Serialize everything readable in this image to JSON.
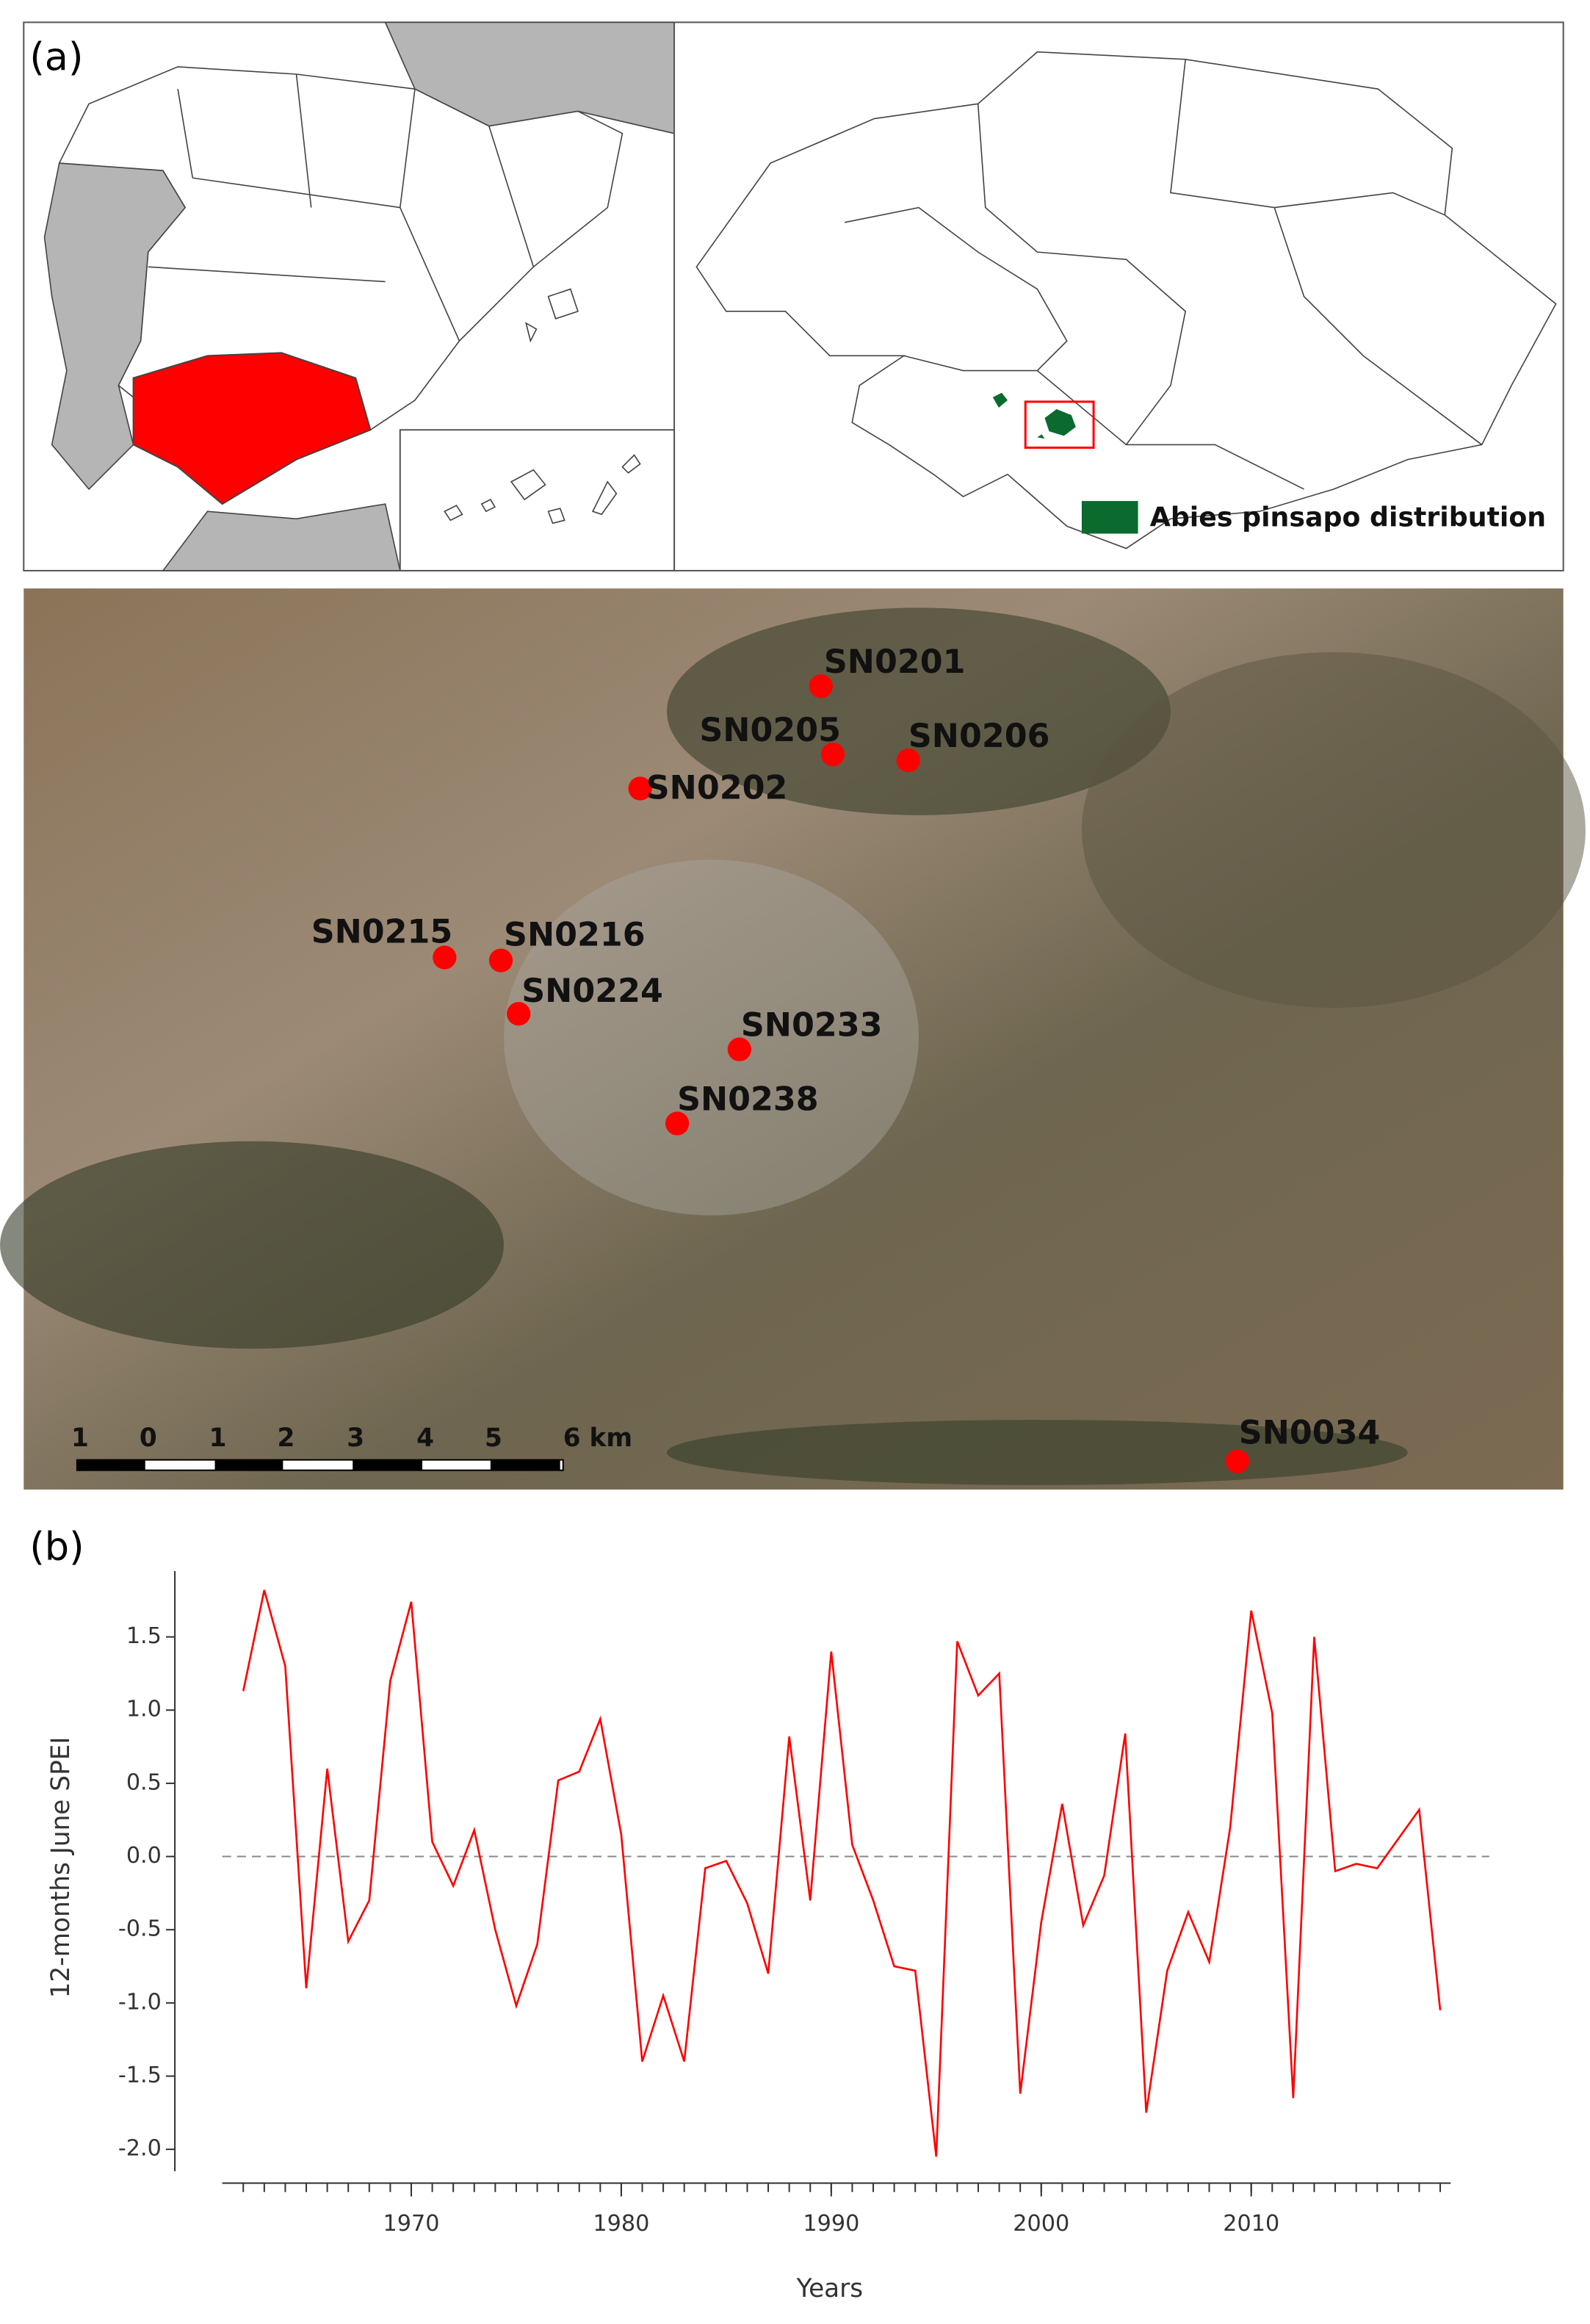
{
  "panel_labels": [
    "(a)",
    "(b)"
  ],
  "legend": {
    "label": "Abies pinsapo distribution",
    "color": "#0b6b2e"
  },
  "sites": {
    "names": [
      "SN0201",
      "SN0205",
      "SN0206",
      "SN0202",
      "SN0215",
      "SN0216",
      "SN0224",
      "SN0233",
      "SN0238",
      "SN0034"
    ],
    "color": "#ff0000"
  },
  "scale_bar": [
    "1",
    "0",
    "1",
    "2",
    "3",
    "4",
    "5",
    "6 km"
  ],
  "chart_data": {
    "type": "line",
    "xlabel": "Years",
    "ylabel": "12-months June SPEI",
    "x": [
      1962,
      1963,
      1964,
      1965,
      1966,
      1967,
      1968,
      1969,
      1970,
      1971,
      1972,
      1973,
      1974,
      1975,
      1976,
      1977,
      1978,
      1979,
      1980,
      1981,
      1982,
      1983,
      1984,
      1985,
      1986,
      1987,
      1988,
      1989,
      1990,
      1991,
      1992,
      1993,
      1994,
      1995,
      1996,
      1997,
      1998,
      1999,
      2000,
      2001,
      2002,
      2003,
      2004,
      2005,
      2006,
      2007,
      2008,
      2009,
      2010,
      2011,
      2012,
      2013,
      2014,
      2015,
      2016,
      2017,
      2018,
      2019
    ],
    "series": [
      {
        "name": "SPEI",
        "color": "#ff0000",
        "values": [
          1.13,
          1.82,
          1.3,
          -0.9,
          0.6,
          -0.58,
          -0.3,
          1.2,
          1.74,
          0.1,
          -0.2,
          0.18,
          -0.5,
          -1.02,
          -0.6,
          0.52,
          0.58,
          0.94,
          0.15,
          -1.4,
          -0.95,
          -1.4,
          -0.08,
          -0.03,
          -0.32,
          -0.8,
          0.82,
          -0.3,
          1.4,
          0.08,
          -0.3,
          -0.75,
          -0.78,
          -2.05,
          1.47,
          1.1,
          1.25,
          -1.62,
          -0.45,
          0.36,
          -0.47,
          -0.13,
          0.84,
          -1.75,
          -0.78,
          -0.38,
          -0.72,
          0.2,
          1.68,
          0.98,
          -1.65,
          1.5,
          -0.1,
          -0.05,
          -0.08,
          0.12,
          0.32,
          -1.05
        ]
      }
    ],
    "xlim": [
      1961,
      2019.5
    ],
    "xticks": [
      1970,
      1980,
      1990,
      2000,
      2010
    ],
    "ylim": [
      -2.15,
      1.95
    ],
    "yticks": [
      {
        "value": -2,
        "label": "-2.0"
      },
      -1.5,
      {
        "value": -1,
        "label": "-1.0"
      },
      -0.5,
      {
        "value": 0,
        "label": "0.0"
      },
      0.5,
      {
        "value": 1,
        "label": "1.0"
      },
      1.5
    ],
    "reference_line": 0
  }
}
